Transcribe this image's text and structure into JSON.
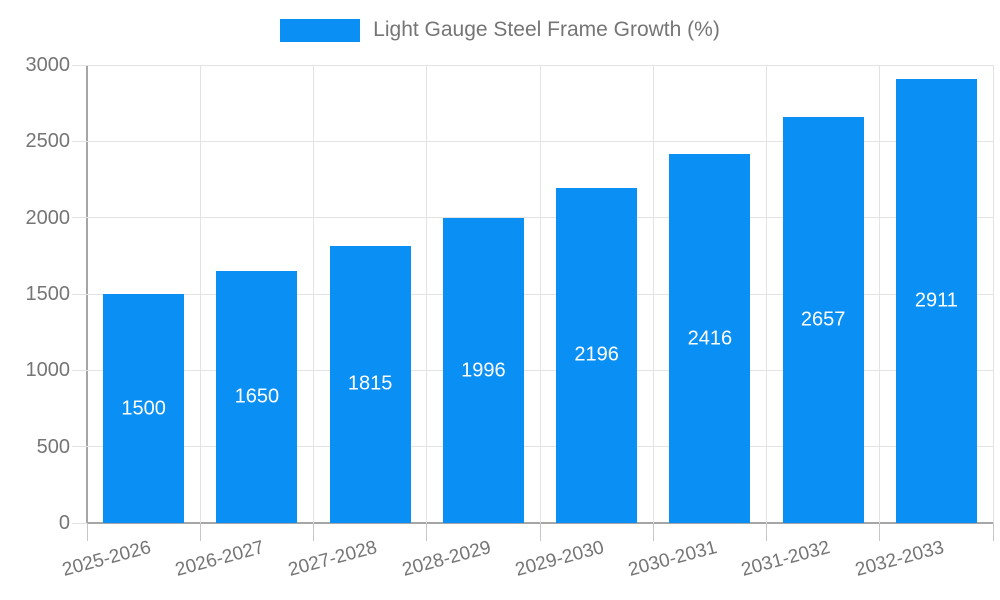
{
  "chart_data": {
    "type": "bar",
    "title": "Light Gauge Steel Frame Growth (%)",
    "categories": [
      "2025-2026",
      "2026-2027",
      "2027-2028",
      "2028-2029",
      "2029-2030",
      "2030-2031",
      "2031-2032",
      "2032-2033"
    ],
    "values": [
      1500,
      1650,
      1815,
      1996,
      2196,
      2416,
      2657,
      2911
    ],
    "ylim": [
      0,
      3000
    ],
    "ytick_step": 500,
    "legend_position": "top",
    "grid": true,
    "colors": {
      "bar": "#0a8ff5",
      "value_label": "#ffffff",
      "grid_line": "#e3e3e3",
      "axis_line": "#a6a6a6",
      "tick_text": "#757575",
      "background": "#ffffff"
    }
  }
}
